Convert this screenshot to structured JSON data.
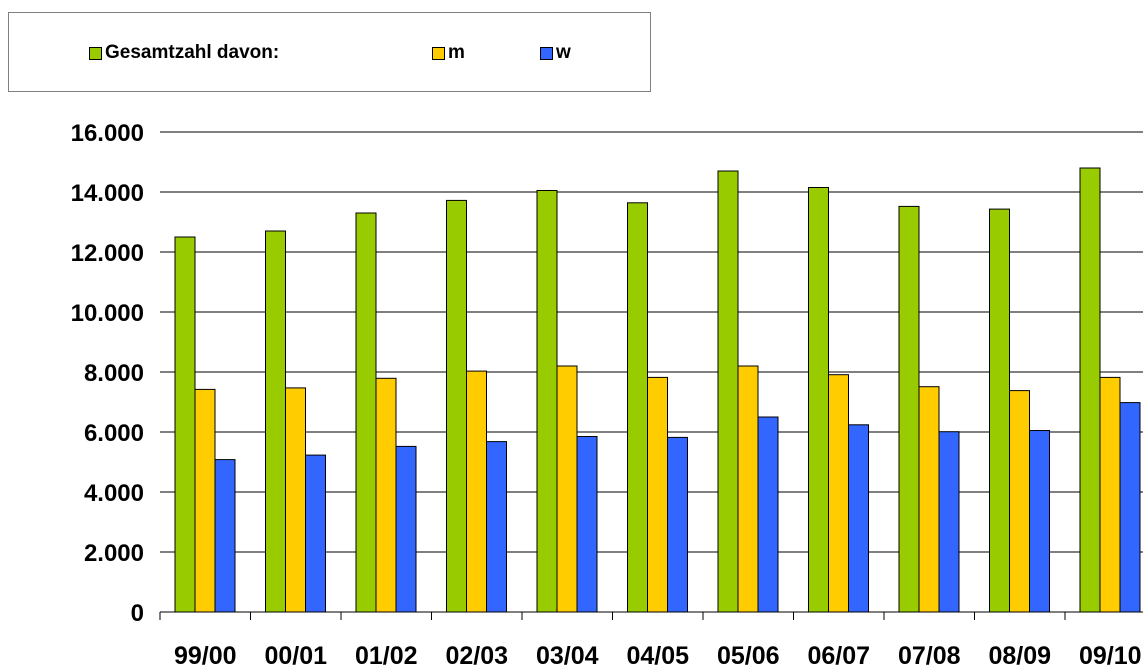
{
  "legend": {
    "items": [
      {
        "label": "Gesamtzahl davon:",
        "color": "#99cc00"
      },
      {
        "label": "m",
        "color": "#ffcc00"
      },
      {
        "label": "w",
        "color": "#3366ff"
      }
    ]
  },
  "chart_data": {
    "type": "bar",
    "categories": [
      "99/00",
      "00/01",
      "01/02",
      "02/03",
      "03/04",
      "04/05",
      "05/06",
      "06/07",
      "07/08",
      "08/09",
      "09/10"
    ],
    "series": [
      {
        "name": "Gesamtzahl davon:",
        "color": "#99cc00",
        "values": [
          12500,
          12700,
          13300,
          13720,
          14050,
          13640,
          14700,
          14150,
          13520,
          13430,
          14800
        ]
      },
      {
        "name": "m",
        "color": "#ffcc00",
        "values": [
          7420,
          7470,
          7790,
          8030,
          8200,
          7820,
          8200,
          7910,
          7510,
          7380,
          7820
        ]
      },
      {
        "name": "w",
        "color": "#3366ff",
        "values": [
          5080,
          5230,
          5520,
          5680,
          5850,
          5820,
          6500,
          6240,
          6010,
          6050,
          6980
        ]
      }
    ],
    "yticks": [
      "0",
      "2.000",
      "4.000",
      "6.000",
      "8.000",
      "10.000",
      "12.000",
      "14.000",
      "16.000"
    ],
    "ylim": [
      0,
      16000
    ],
    "title": "",
    "xlabel": "",
    "ylabel": "",
    "grid": true,
    "legend_position": "top-left"
  }
}
